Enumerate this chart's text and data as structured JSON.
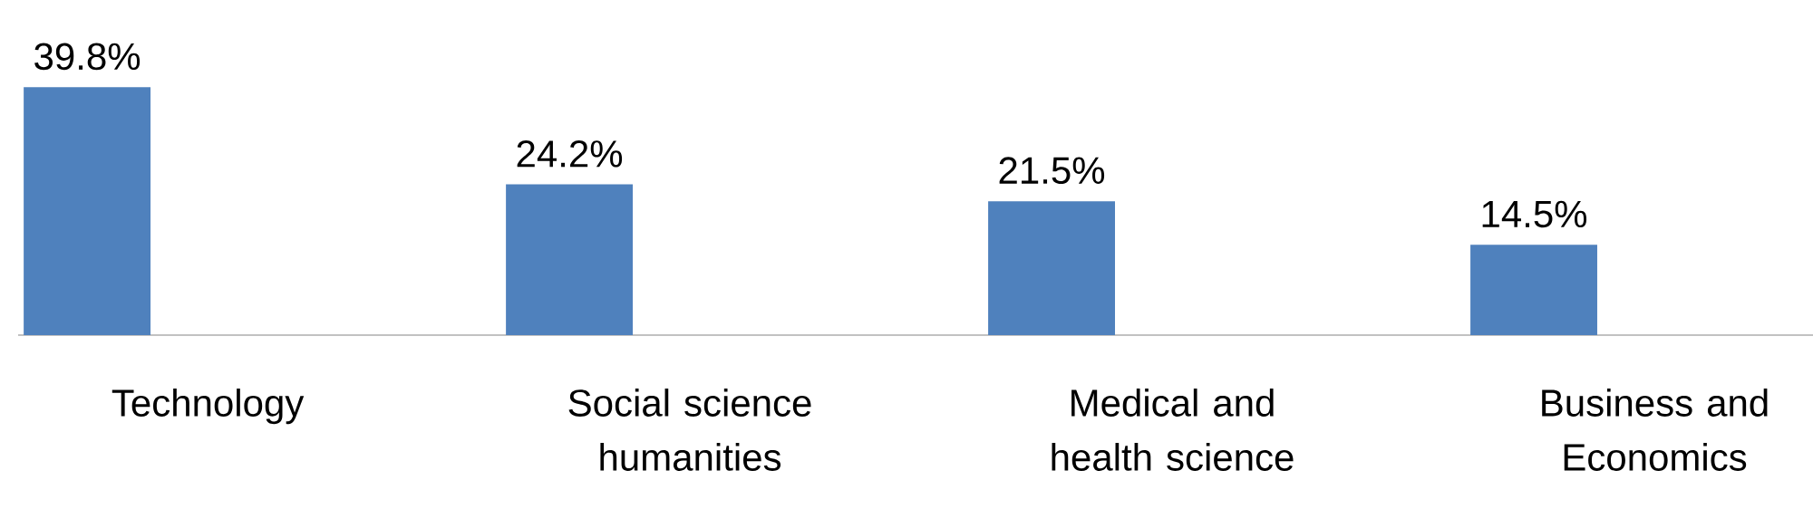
{
  "chart_data": {
    "type": "bar",
    "categories": [
      "Technology",
      "Social science humanities",
      "Medical and health science",
      "Business and Economics"
    ],
    "values": [
      39.8,
      24.2,
      21.5,
      14.5
    ],
    "value_labels": [
      "39.8%",
      "24.2%",
      "21.5%",
      "14.5%"
    ],
    "color": "#4f81bd"
  }
}
